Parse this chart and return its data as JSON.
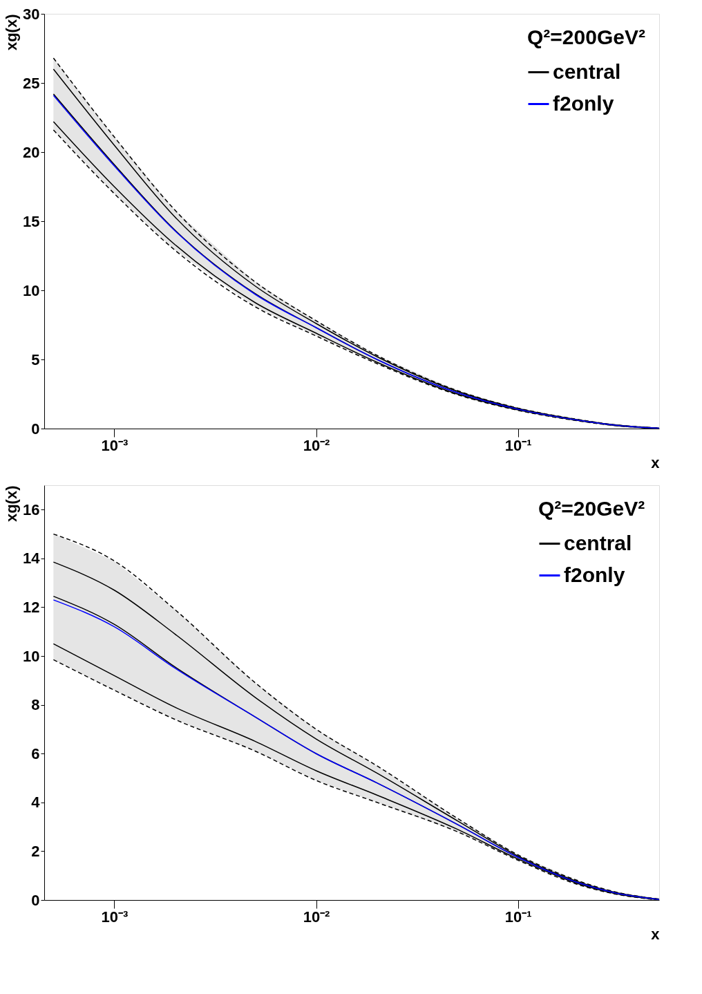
{
  "chart_data": [
    {
      "type": "line",
      "legend_title": "Q²=200GeV²",
      "xlabel": "x",
      "ylabel": "xg(x)",
      "log": "x",
      "grid": false,
      "legend": "top right",
      "marker": "none",
      "x": [
        0.0005,
        0.001,
        0.002,
        0.005,
        0.01,
        0.02,
        0.05,
        0.1,
        0.2,
        0.3,
        0.5
      ],
      "xlim": [
        0.00045,
        0.5
      ],
      "xticks": [
        {
          "value": 0.001,
          "label": "10⁻³"
        },
        {
          "value": 0.01,
          "label": "10⁻²"
        },
        {
          "value": 0.1,
          "label": "10⁻¹"
        }
      ],
      "ylim": [
        0,
        30
      ],
      "yticks": [
        0,
        5,
        10,
        15,
        20,
        25,
        30
      ],
      "series": [
        {
          "name": "central",
          "color": "#000000",
          "values": [
            24.2,
            19.1,
            14.35,
            9.75,
            7.3,
            5.0,
            2.6,
            1.4,
            0.6,
            0.25,
            0.02
          ],
          "lower": [
            21.6,
            17.0,
            12.9,
            8.8,
            6.7,
            4.7,
            2.45,
            1.32,
            0.55,
            0.22,
            0.0
          ],
          "upper": [
            26.8,
            21.1,
            15.8,
            10.6,
            7.8,
            5.3,
            2.75,
            1.48,
            0.65,
            0.28,
            0.04
          ]
        },
        {
          "color": "#000000",
          "line_style": "solid",
          "values": [
            26.0,
            20.5,
            15.3,
            10.3,
            7.6,
            5.2,
            2.7,
            1.45,
            0.63,
            0.27,
            0.03
          ]
        },
        {
          "color": "#000000",
          "line_style": "solid",
          "values": [
            22.2,
            17.5,
            13.3,
            9.1,
            6.9,
            4.8,
            2.5,
            1.35,
            0.57,
            0.23,
            0.01
          ]
        },
        {
          "color": "#000000",
          "line_style": "dashed",
          "values": [
            26.8,
            21.1,
            15.8,
            10.6,
            7.8,
            5.3,
            2.75,
            1.48,
            0.65,
            0.28,
            0.04
          ]
        },
        {
          "color": "#000000",
          "line_style": "dashed",
          "values": [
            21.6,
            17.0,
            12.9,
            8.8,
            6.7,
            4.7,
            2.45,
            1.32,
            0.55,
            0.22,
            0.0
          ]
        },
        {
          "name": "f2only",
          "color": "#0000ff",
          "values": [
            24.1,
            19.0,
            14.3,
            9.7,
            7.3,
            5.0,
            2.6,
            1.4,
            0.6,
            0.25,
            0.02
          ]
        }
      ]
    },
    {
      "type": "line",
      "legend_title": "Q²=20GeV²",
      "xlabel": "x",
      "ylabel": "xg(x)",
      "log": "x",
      "grid": false,
      "legend": "top right",
      "marker": "none",
      "x": [
        0.0005,
        0.001,
        0.002,
        0.005,
        0.01,
        0.02,
        0.05,
        0.1,
        0.2,
        0.3,
        0.5
      ],
      "xlim": [
        0.00045,
        0.5
      ],
      "xticks": [
        {
          "value": 0.001,
          "label": "10⁻³"
        },
        {
          "value": 0.01,
          "label": "10⁻²"
        },
        {
          "value": 0.1,
          "label": "10⁻¹"
        }
      ],
      "ylim": [
        0,
        17
      ],
      "yticks": [
        0,
        2,
        4,
        6,
        8,
        10,
        12,
        14,
        16
      ],
      "series": [
        {
          "name": "central",
          "color": "#000000",
          "values": [
            12.45,
            11.3,
            9.55,
            7.5,
            6.0,
            4.8,
            3.1,
            1.75,
            0.7,
            0.3,
            0.02
          ],
          "lower": [
            9.85,
            8.6,
            7.4,
            6.1,
            4.9,
            4.0,
            2.8,
            1.63,
            0.62,
            0.25,
            0.0
          ],
          "upper": [
            15.0,
            13.9,
            11.9,
            8.9,
            7.0,
            5.5,
            3.35,
            1.85,
            0.78,
            0.34,
            0.04
          ]
        },
        {
          "color": "#000000",
          "line_style": "solid",
          "values": [
            13.85,
            12.7,
            10.9,
            8.3,
            6.6,
            5.2,
            3.25,
            1.8,
            0.74,
            0.32,
            0.03
          ]
        },
        {
          "color": "#000000",
          "line_style": "solid",
          "values": [
            10.5,
            9.2,
            7.9,
            6.5,
            5.3,
            4.3,
            2.9,
            1.68,
            0.66,
            0.27,
            0.01
          ]
        },
        {
          "color": "#000000",
          "line_style": "dashed",
          "values": [
            15.0,
            13.9,
            11.9,
            8.9,
            7.0,
            5.5,
            3.35,
            1.85,
            0.78,
            0.34,
            0.04
          ]
        },
        {
          "color": "#000000",
          "line_style": "dashed",
          "values": [
            9.85,
            8.6,
            7.4,
            6.1,
            4.9,
            4.0,
            2.8,
            1.63,
            0.62,
            0.25,
            0.0
          ]
        },
        {
          "name": "f2only",
          "color": "#0000ff",
          "values": [
            12.3,
            11.2,
            9.5,
            7.5,
            6.0,
            4.8,
            3.1,
            1.75,
            0.7,
            0.3,
            0.02
          ]
        }
      ]
    }
  ]
}
